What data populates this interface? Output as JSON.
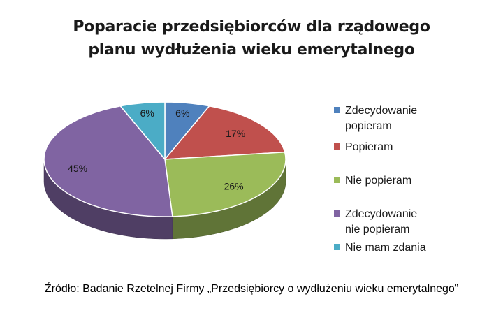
{
  "chart_data": {
    "type": "pie",
    "title": "Poparacie przedsiębiorców dla rządowego planu wydłużenia wieku emerytalnego",
    "title_lines": [
      "Poparacie przedsiębiorców dla rządowego",
      "planu wydłużenia wieku emerytalnego"
    ],
    "three_d": true,
    "legend_position": "right",
    "slices": [
      {
        "label": "Zdecydowanie\npopieram",
        "value": 6,
        "data_label": "6%",
        "color": "#4f81bd"
      },
      {
        "label": "Popieram",
        "value": 17,
        "data_label": "17%",
        "color": "#c0504d"
      },
      {
        "label": "Nie popieram",
        "value": 26,
        "data_label": "26%",
        "color": "#9bbb59"
      },
      {
        "label": "Zdecydowanie\nnie popieram",
        "value": 45,
        "data_label": "45%",
        "color": "#8064a2"
      },
      {
        "label": "Nie mam zdania",
        "value": 6,
        "data_label": "6%",
        "color": "#4bacc6"
      }
    ]
  },
  "source_note": "Źródło: Badanie Rzetelnej Firmy „Przedsiębiorcy o wydłużeniu wieku emerytalnego”"
}
